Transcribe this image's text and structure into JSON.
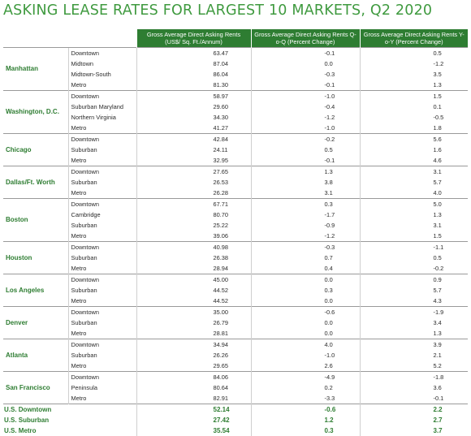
{
  "title": "ASKING LEASE RATES FOR LARGEST 10 MARKETS, Q2 2020",
  "headers": {
    "col1": "Gross Average Direct Asking Rents (US$/ Sq. Ft./Annum)",
    "col2": "Gross Average Direct Asking Rents Q-o-Q (Percent Change)",
    "col3": "Gross Average Direct Asking Rents Y-o-Y (Percent Change)"
  },
  "markets": [
    {
      "name": "Manhattan",
      "rows": [
        {
          "sub": "Downtown",
          "v1": "63.47",
          "v2": "-0.1",
          "v3": "0.5"
        },
        {
          "sub": "Midtown",
          "v1": "87.04",
          "v2": "0.0",
          "v3": "-1.2"
        },
        {
          "sub": "Midtown-South",
          "v1": "86.04",
          "v2": "-0.3",
          "v3": "3.5"
        },
        {
          "sub": "Metro",
          "v1": "81.30",
          "v2": "-0.1",
          "v3": "1.3"
        }
      ]
    },
    {
      "name": "Washington, D.C.",
      "rows": [
        {
          "sub": "Downtown",
          "v1": "58.97",
          "v2": "-1.0",
          "v3": "1.5"
        },
        {
          "sub": "Suburban Maryland",
          "v1": "29.60",
          "v2": "-0.4",
          "v3": "0.1"
        },
        {
          "sub": "Northern Virginia",
          "v1": "34.30",
          "v2": "-1.2",
          "v3": "-0.5"
        },
        {
          "sub": "Metro",
          "v1": "41.27",
          "v2": "-1.0",
          "v3": "1.8"
        }
      ]
    },
    {
      "name": "Chicago",
      "rows": [
        {
          "sub": "Downtown",
          "v1": "42.84",
          "v2": "-0.2",
          "v3": "5.6"
        },
        {
          "sub": "Suburban",
          "v1": "24.11",
          "v2": "0.5",
          "v3": "1.6"
        },
        {
          "sub": "Metro",
          "v1": "32.95",
          "v2": "-0.1",
          "v3": "4.6"
        }
      ]
    },
    {
      "name": "Dallas/Ft. Worth",
      "rows": [
        {
          "sub": "Downtown",
          "v1": "27.65",
          "v2": "1.3",
          "v3": "3.1"
        },
        {
          "sub": "Suburban",
          "v1": "26.53",
          "v2": "3.8",
          "v3": "5.7"
        },
        {
          "sub": "Metro",
          "v1": "26.28",
          "v2": "3.1",
          "v3": "4.0"
        }
      ]
    },
    {
      "name": "Boston",
      "rows": [
        {
          "sub": "Downtown",
          "v1": "67.71",
          "v2": "0.3",
          "v3": "5.0"
        },
        {
          "sub": "Cambridge",
          "v1": "80.70",
          "v2": "-1.7",
          "v3": "1.3"
        },
        {
          "sub": "Suburban",
          "v1": "25.22",
          "v2": "-0.9",
          "v3": "3.1"
        },
        {
          "sub": "Metro",
          "v1": "39.06",
          "v2": "-1.2",
          "v3": "1.5"
        }
      ]
    },
    {
      "name": "Houston",
      "rows": [
        {
          "sub": "Downtown",
          "v1": "40.98",
          "v2": "-0.3",
          "v3": "-1.1"
        },
        {
          "sub": "Suburban",
          "v1": "26.38",
          "v2": "0.7",
          "v3": "0.5"
        },
        {
          "sub": "Metro",
          "v1": "28.94",
          "v2": "0.4",
          "v3": "-0.2"
        }
      ]
    },
    {
      "name": "Los Angeles",
      "rows": [
        {
          "sub": "Downtown",
          "v1": "45.00",
          "v2": "0.0",
          "v3": "0.9"
        },
        {
          "sub": "Suburban",
          "v1": "44.52",
          "v2": "0.3",
          "v3": "5.7"
        },
        {
          "sub": "Metro",
          "v1": "44.52",
          "v2": "0.0",
          "v3": "4.3"
        }
      ]
    },
    {
      "name": "Denver",
      "rows": [
        {
          "sub": "Downtown",
          "v1": "35.00",
          "v2": "-0.6",
          "v3": "-1.9"
        },
        {
          "sub": "Suburban",
          "v1": "26.79",
          "v2": "0.0",
          "v3": "3.4"
        },
        {
          "sub": "Metro",
          "v1": "28.81",
          "v2": "0.0",
          "v3": "1.3"
        }
      ]
    },
    {
      "name": "Atlanta",
      "rows": [
        {
          "sub": "Downtown",
          "v1": "34.94",
          "v2": "4.0",
          "v3": "3.9"
        },
        {
          "sub": "Suburban",
          "v1": "26.26",
          "v2": "-1.0",
          "v3": "2.1"
        },
        {
          "sub": "Metro",
          "v1": "29.65",
          "v2": "2.6",
          "v3": "5.2"
        }
      ]
    },
    {
      "name": "San Francisco",
      "rows": [
        {
          "sub": "Downtown",
          "v1": "84.06",
          "v2": "-4.9",
          "v3": "-1.8"
        },
        {
          "sub": "Peninsula",
          "v1": "80.64",
          "v2": "0.2",
          "v3": "3.6"
        },
        {
          "sub": "Metro",
          "v1": "82.91",
          "v2": "-3.3",
          "v3": "-0.1"
        }
      ]
    }
  ],
  "summary": [
    {
      "name": "U.S. Downtown",
      "v1": "52.14",
      "v2": "-0.6",
      "v3": "2.2"
    },
    {
      "name": "U.S. Suburban",
      "v1": "27.42",
      "v2": "1.2",
      "v3": "2.7"
    },
    {
      "name": "U.S. Metro",
      "v1": "35.54",
      "v2": "0.3",
      "v3": "3.7"
    }
  ]
}
